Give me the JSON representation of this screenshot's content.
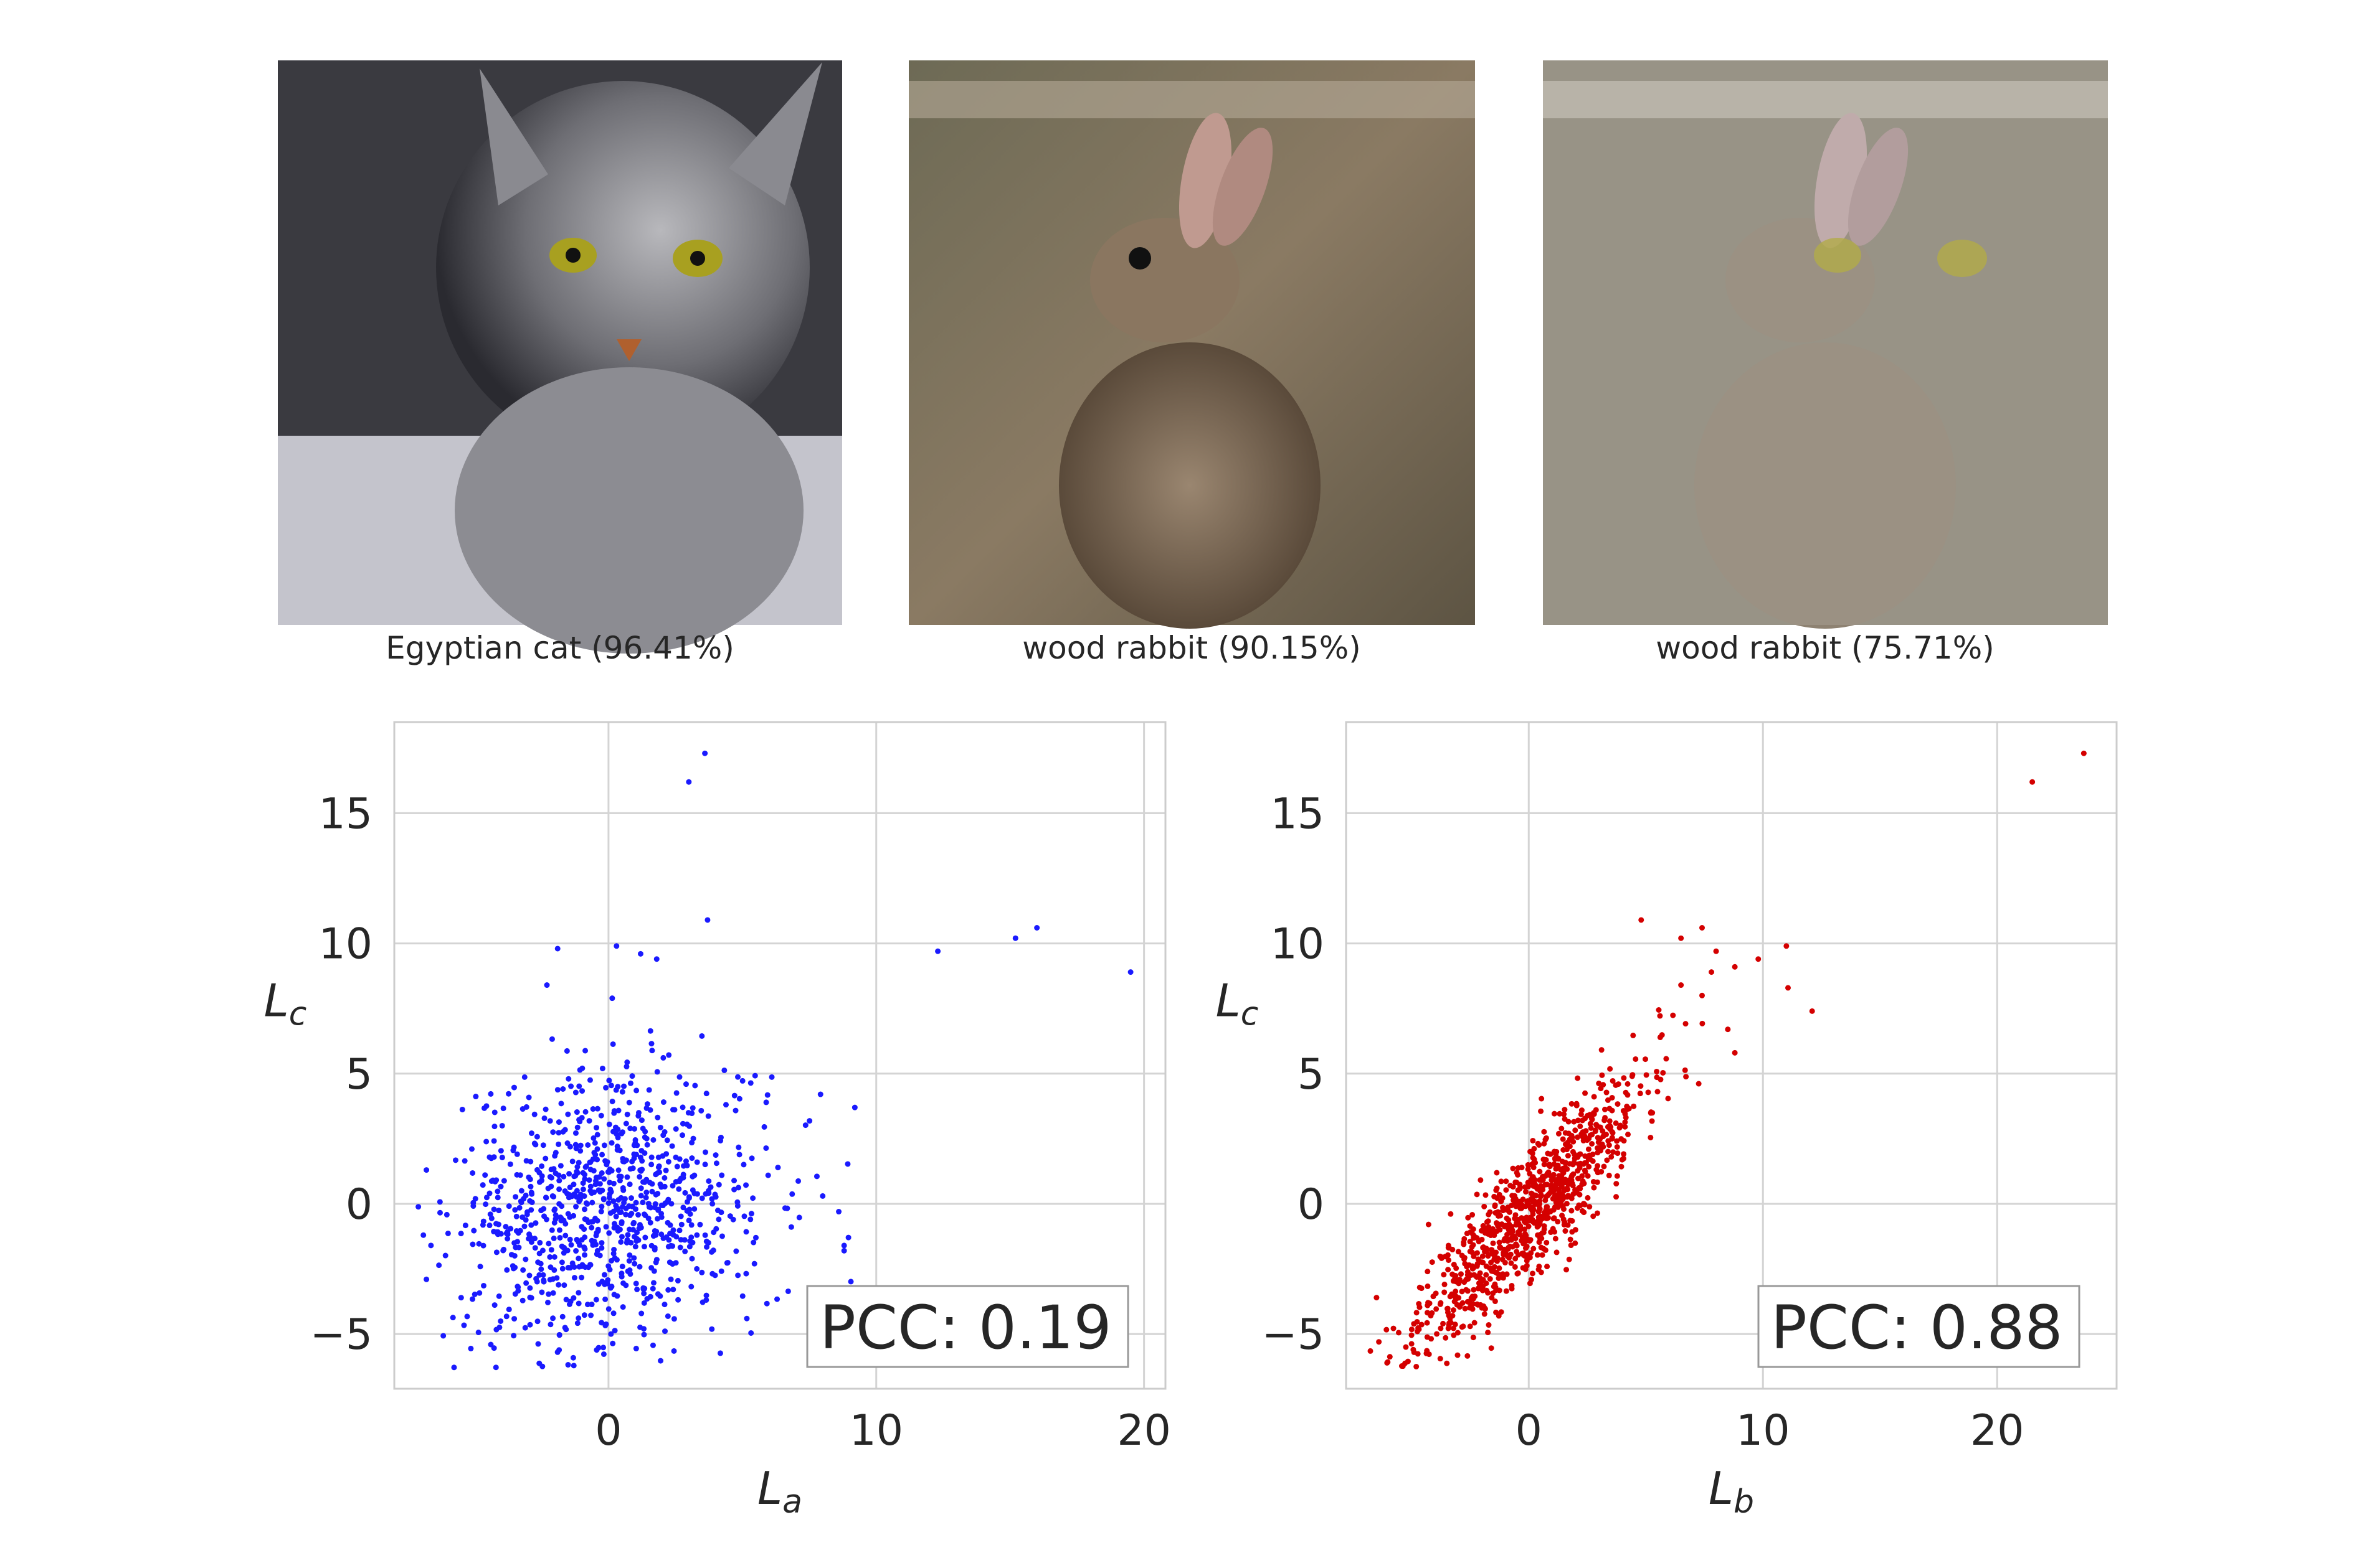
{
  "images": [
    {
      "caption": "Egyptian cat (96.41%)",
      "subject": "cat"
    },
    {
      "caption": "wood rabbit (90.15%)",
      "subject": "rabbit"
    },
    {
      "caption": "wood rabbit (75.71%)",
      "subject": "blended cat and rabbit"
    }
  ],
  "chart_data": [
    {
      "type": "scatter",
      "xlabel_main": "L",
      "xlabel_sub": "a",
      "ylabel_main": "L",
      "ylabel_sub": "c",
      "xlim": [
        -8,
        20.8
      ],
      "ylim": [
        -7.1,
        18.5
      ],
      "xticks": [
        0,
        10,
        20
      ],
      "yticks": [
        -5,
        0,
        5,
        10,
        15
      ],
      "xtick_labels": [
        "0",
        "10",
        "20"
      ],
      "ytick_labels": [
        "−5",
        "0",
        "5",
        "10",
        "15"
      ],
      "grid": true,
      "color": "#1a1aff",
      "annotation": "PCC: 0.19",
      "annotation_position": "bottom-right",
      "cluster": {
        "n": 950,
        "x_mean": 0,
        "x_std": 2.9,
        "y_mean": -0.3,
        "y_std": 2.7,
        "corr": 0.12,
        "seed": 7
      },
      "outliers": [
        [
          3.0,
          16.2
        ],
        [
          3.6,
          17.3
        ],
        [
          3.7,
          10.9
        ],
        [
          12.3,
          9.7
        ],
        [
          15.2,
          10.2
        ],
        [
          16.0,
          10.6
        ],
        [
          19.5,
          8.9
        ],
        [
          9.2,
          3.7
        ],
        [
          8.8,
          -1.8
        ],
        [
          8.8,
          -1.6
        ],
        [
          -1.9,
          9.8
        ],
        [
          0.3,
          9.9
        ],
        [
          1.2,
          9.6
        ],
        [
          1.8,
          9.4
        ],
        [
          -2.3,
          8.4
        ],
        [
          8.0,
          0.3
        ],
        [
          8.6,
          -0.3
        ],
        [
          -6.8,
          1.3
        ],
        [
          -6.8,
          -2.9
        ]
      ]
    },
    {
      "type": "scatter",
      "xlabel_main": "L",
      "xlabel_sub": "b",
      "ylabel_main": "L",
      "ylabel_sub": "c",
      "xlim": [
        -7.8,
        25.1
      ],
      "ylim": [
        -7.1,
        18.5
      ],
      "xticks": [
        0,
        10,
        20
      ],
      "yticks": [
        -5,
        0,
        5,
        10,
        15
      ],
      "xtick_labels": [
        "0",
        "10",
        "20"
      ],
      "ytick_labels": [
        "−5",
        "0",
        "5",
        "10",
        "15"
      ],
      "grid": true,
      "color": "#d40000",
      "annotation": "PCC: 0.88",
      "annotation_position": "bottom-right",
      "cluster": {
        "n": 950,
        "x_mean": 0,
        "x_std": 2.4,
        "y_mean": -0.3,
        "y_std": 2.6,
        "corr": 0.88,
        "seed": 11
      },
      "outliers": [
        [
          21.5,
          16.2
        ],
        [
          23.7,
          17.3
        ],
        [
          4.8,
          10.9
        ],
        [
          7.4,
          10.6
        ],
        [
          6.5,
          10.2
        ],
        [
          8.0,
          9.7
        ],
        [
          11.0,
          9.9
        ],
        [
          9.8,
          9.4
        ],
        [
          8.8,
          9.1
        ],
        [
          12.1,
          7.4
        ],
        [
          7.8,
          8.9
        ],
        [
          6.5,
          8.4
        ],
        [
          7.4,
          8.0
        ],
        [
          8.5,
          6.7
        ],
        [
          8.8,
          5.8
        ],
        [
          -6.4,
          -5.3
        ],
        [
          -6.5,
          -3.6
        ]
      ]
    }
  ]
}
